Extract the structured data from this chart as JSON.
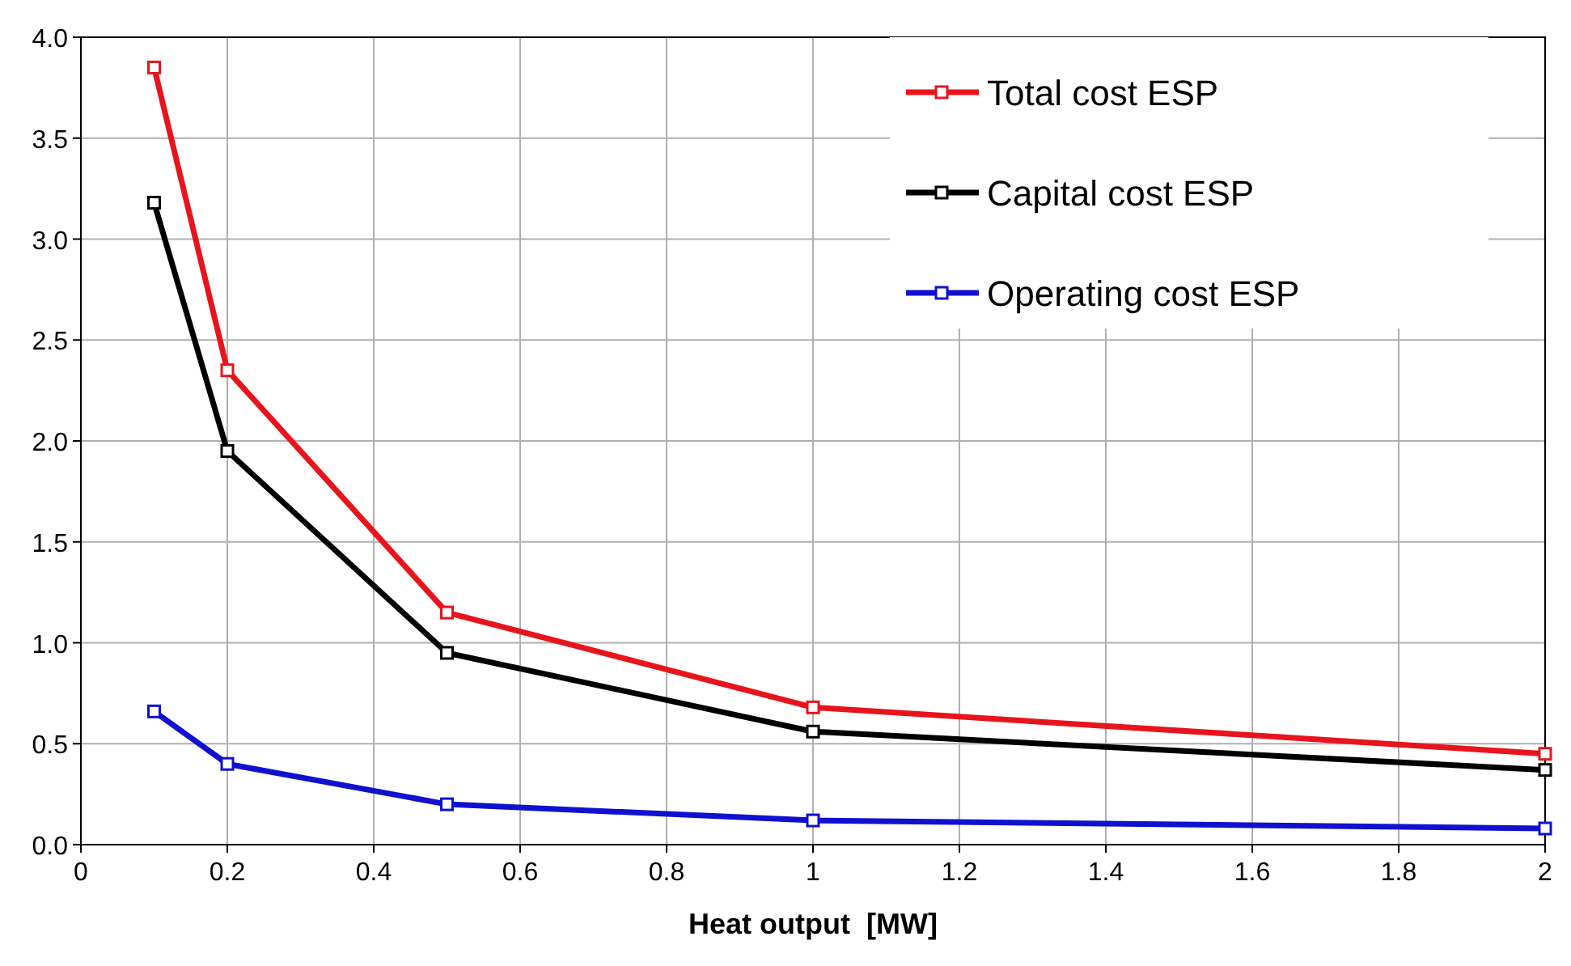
{
  "chart_data": {
    "type": "line",
    "xlabel": "Heat output  [MW]",
    "x": [
      0.1,
      0.2,
      0.5,
      1,
      2
    ],
    "series": [
      {
        "name": "Total cost ESP",
        "color": "#e8141c",
        "values": [
          3.85,
          2.35,
          1.15,
          0.68,
          0.45
        ]
      },
      {
        "name": "Capital cost ESP",
        "color": "#000000",
        "values": [
          3.18,
          1.95,
          0.95,
          0.56,
          0.37
        ]
      },
      {
        "name": "Operating cost ESP",
        "color": "#1010d0",
        "values": [
          0.66,
          0.4,
          0.2,
          0.12,
          0.08
        ]
      }
    ],
    "xlim": [
      0,
      2
    ],
    "xticks": [
      0,
      0.2,
      0.4,
      0.6,
      0.8,
      1,
      1.2,
      1.4,
      1.6,
      1.8,
      2
    ],
    "ylim": [
      0,
      4
    ],
    "yticks": [
      {
        "value": 0,
        "label": "0.0"
      },
      {
        "value": 0.5,
        "label": "0.5"
      },
      {
        "value": 1,
        "label": "1.0"
      },
      {
        "value": 1.5,
        "label": "1.5"
      },
      {
        "value": 2,
        "label": "2.0"
      },
      {
        "value": 2.5,
        "label": "2.5"
      },
      {
        "value": 3,
        "label": "3.0"
      },
      {
        "value": 3.5,
        "label": "3.5"
      },
      {
        "value": 4,
        "label": "4.0"
      }
    ],
    "grid": true,
    "legend": "top right",
    "marker": "square",
    "line_style": "solid"
  }
}
